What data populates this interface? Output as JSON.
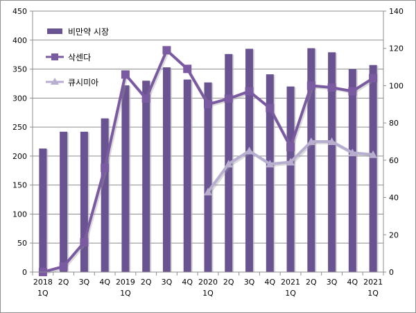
{
  "chart_data": {
    "type": "bar+line",
    "categories": [
      [
        "2018",
        "1Q"
      ],
      [
        "2Q"
      ],
      [
        "3Q"
      ],
      [
        "4Q"
      ],
      [
        "2019",
        "1Q"
      ],
      [
        "2Q"
      ],
      [
        "3Q"
      ],
      [
        "4Q"
      ],
      [
        "2020",
        "1Q"
      ],
      [
        "2Q"
      ],
      [
        "3Q"
      ],
      [
        "4Q"
      ],
      [
        "2021",
        "1Q"
      ],
      [
        "2Q"
      ],
      [
        "3Q"
      ],
      [
        "4Q"
      ],
      [
        "2021",
        "1Q"
      ]
    ],
    "y_left": {
      "min": 0,
      "max": 450,
      "step": 50,
      "ticks": [
        "0",
        "50",
        "100",
        "150",
        "200",
        "250",
        "300",
        "350",
        "400",
        "450"
      ]
    },
    "y_right": {
      "min": 0,
      "max": 140,
      "step": 20,
      "ticks": [
        "0",
        "20",
        "40",
        "60",
        "80",
        "100",
        "120",
        "140"
      ]
    },
    "series": [
      {
        "name": "비만약 시장",
        "kind": "bar",
        "axis": "left",
        "color": "#6a5391",
        "values": [
          213,
          242,
          242,
          265,
          322,
          330,
          353,
          332,
          327,
          376,
          385,
          341,
          320,
          386,
          379,
          350,
          357
        ]
      },
      {
        "name": "삭센다",
        "kind": "line",
        "axis": "right",
        "color": "#7a5aa0",
        "marker": "square",
        "values": [
          0,
          3,
          16,
          56,
          106,
          93,
          119,
          109,
          90,
          93,
          97,
          88,
          67,
          100,
          99,
          97,
          104
        ]
      },
      {
        "name": "큐시미아",
        "kind": "line",
        "axis": "right",
        "color": "#b8aed0",
        "marker": "triangle",
        "values": [
          null,
          null,
          null,
          null,
          null,
          null,
          null,
          null,
          43,
          58,
          65,
          58,
          59,
          70,
          70,
          64,
          63
        ]
      }
    ],
    "legend_position": "top-left",
    "grid": true
  }
}
